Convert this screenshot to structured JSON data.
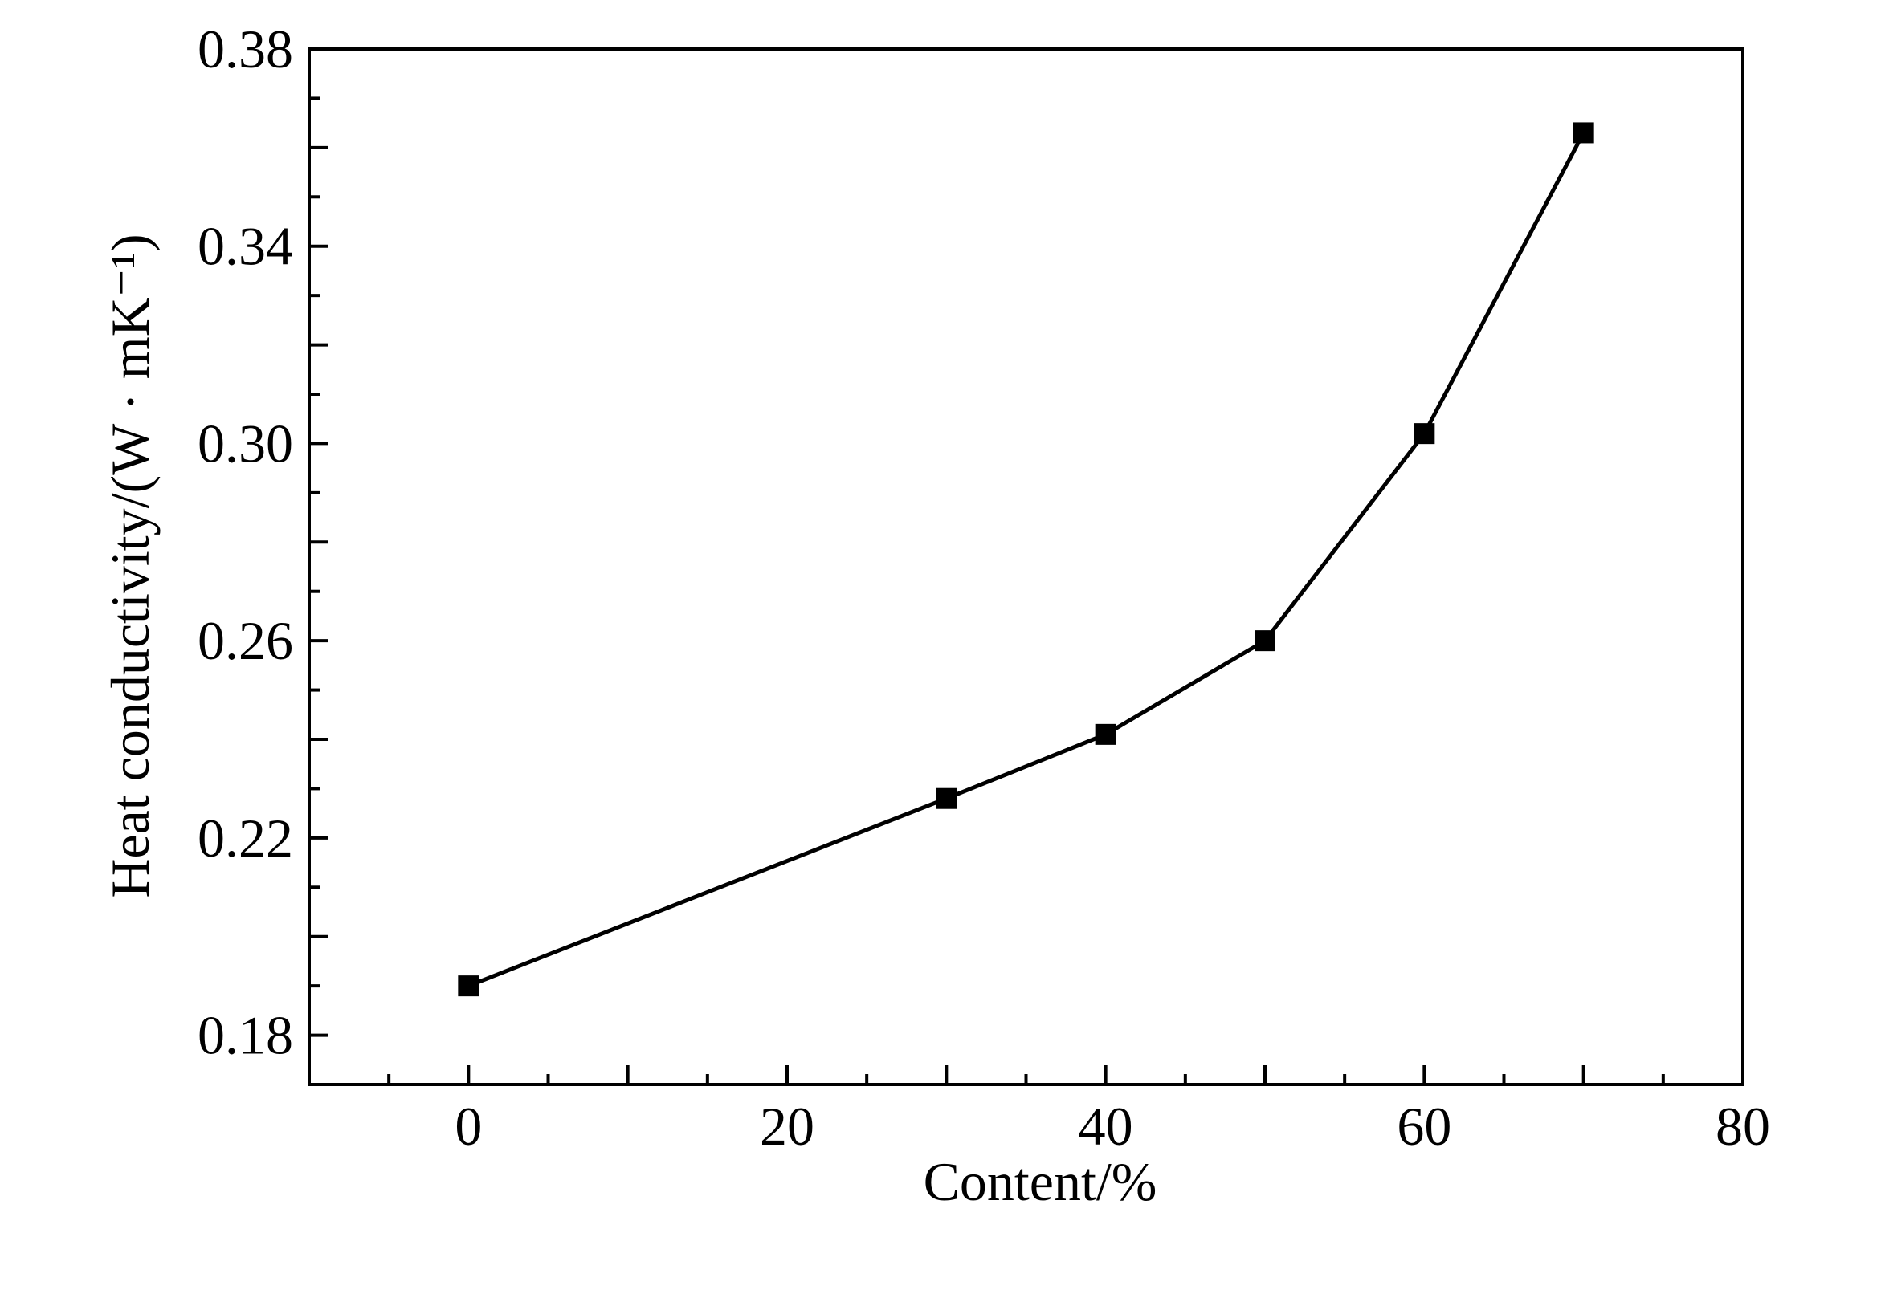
{
  "chart_data": {
    "type": "line",
    "xlabel": "Content/%",
    "ylabel": "Heat conductivity/(W · mK⁻¹)",
    "xlim": [
      -10,
      80
    ],
    "ylim": [
      0.17,
      0.38
    ],
    "x_ticks": [
      0,
      20,
      40,
      60,
      80
    ],
    "y_ticks": [
      0.18,
      0.22,
      0.26,
      0.3,
      0.34,
      0.38
    ],
    "x_tick_labels": [
      "0",
      "20",
      "40",
      "60",
      "80"
    ],
    "y_tick_labels": [
      "0.18",
      "0.22",
      "0.26",
      "0.30",
      "0.34",
      "0.38"
    ],
    "grid": false,
    "marker": "square",
    "series": [
      {
        "x": [
          0,
          30,
          40,
          50,
          60,
          70
        ],
        "values": [
          0.19,
          0.228,
          0.241,
          0.26,
          0.302,
          0.363
        ]
      }
    ],
    "colors": {
      "line": "#000000",
      "marker": "#000000"
    }
  }
}
